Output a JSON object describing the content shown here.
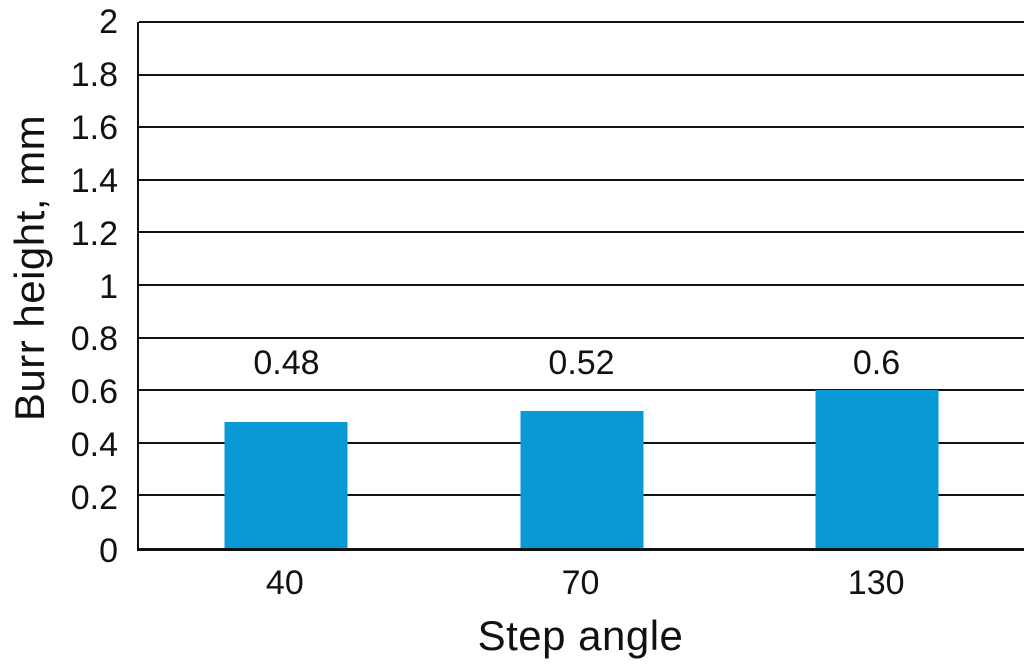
{
  "chart_data": {
    "type": "bar",
    "title": "",
    "xlabel": "Step angle",
    "ylabel": "Burr height, mm",
    "categories": [
      "40",
      "70",
      "130"
    ],
    "values": [
      0.48,
      0.52,
      0.6
    ],
    "value_labels": [
      "0.48",
      "0.52",
      "0.6"
    ],
    "ylim": [
      0,
      2
    ],
    "ytick_step": 0.2,
    "yticks": [
      {
        "value": 0,
        "label": "0"
      },
      {
        "value": 0.2,
        "label": "0.2"
      },
      {
        "value": 0.4,
        "label": "0.4"
      },
      {
        "value": 0.6,
        "label": "0.6"
      },
      {
        "value": 0.8,
        "label": "0.8"
      },
      {
        "value": 1,
        "label": "1"
      },
      {
        "value": 1.2,
        "label": "1.2"
      },
      {
        "value": 1.4,
        "label": "1.4"
      },
      {
        "value": 1.6,
        "label": "1.6"
      },
      {
        "value": 1.8,
        "label": "1.8"
      },
      {
        "value": 2,
        "label": "2"
      }
    ],
    "grid": "horizontal",
    "legend": "none",
    "colors": {
      "bar": "#0999D5",
      "axis": "#111111",
      "text": "#111111",
      "background": "#FFFFFF"
    }
  }
}
